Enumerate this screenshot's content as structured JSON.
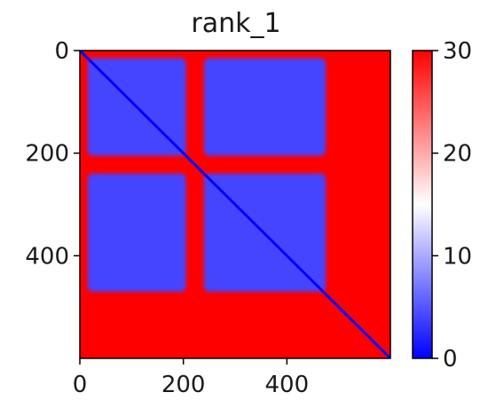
{
  "chart_data": {
    "type": "heatmap",
    "title": "rank_1",
    "xlabel": "",
    "ylabel": "",
    "xlim": [
      0,
      600
    ],
    "ylim": [
      600,
      0
    ],
    "x_ticks": [
      "0",
      "200",
      "400"
    ],
    "y_ticks": [
      "0",
      "200",
      "400"
    ],
    "colorbar": {
      "range": [
        0,
        30
      ],
      "ticks": [
        "0",
        "10",
        "20",
        "30"
      ],
      "colormap": "bwr",
      "colors": {
        "low": "#0000ff",
        "mid": "#ffffff",
        "high": "#ff0000"
      }
    },
    "matrix_size": 600,
    "diagonal_value": 0,
    "default_value": 30,
    "blocks": [
      {
        "x": [
          15,
          205
        ],
        "y": [
          15,
          205
        ],
        "value": 4
      },
      {
        "x": [
          240,
          475
        ],
        "y": [
          15,
          205
        ],
        "value": 4
      },
      {
        "x": [
          15,
          205
        ],
        "y": [
          240,
          470
        ],
        "value": 4
      },
      {
        "x": [
          240,
          475
        ],
        "y": [
          240,
          470
        ],
        "value": 4
      }
    ],
    "grid": false
  }
}
